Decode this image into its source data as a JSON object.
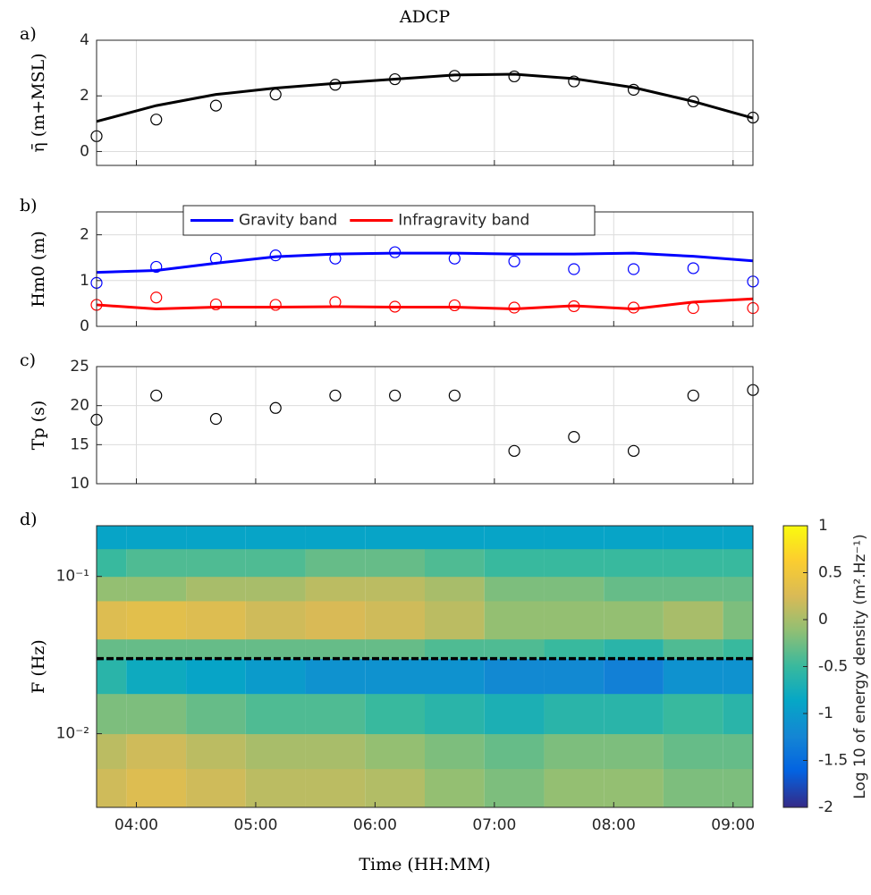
{
  "chart_data": [
    {
      "type": "line",
      "title": "ADCP",
      "panel_label": "a)",
      "ylabel": "η̄ (m+MSL)",
      "x": [
        220,
        250,
        280,
        310,
        340,
        370,
        400,
        430,
        460,
        490,
        520,
        550
      ],
      "xlim": [
        220,
        550
      ],
      "xticks": [
        240,
        300,
        360,
        420,
        480,
        540
      ],
      "ylim": [
        -0.5,
        4
      ],
      "yticks": [
        0,
        2,
        4
      ],
      "grid": true,
      "series": [
        {
          "color": "#000000",
          "values": [
            1.08,
            1.65,
            2.05,
            2.28,
            2.45,
            2.6,
            2.75,
            2.78,
            2.62,
            2.3,
            1.8,
            1.2
          ],
          "markers": [
            0.55,
            1.15,
            1.65,
            2.05,
            2.4,
            2.6,
            2.72,
            2.7,
            2.52,
            2.22,
            1.8,
            1.22
          ]
        }
      ]
    },
    {
      "type": "line",
      "panel_label": "b)",
      "ylabel": "Hm0 (m)",
      "x": [
        220,
        250,
        280,
        310,
        340,
        370,
        400,
        430,
        460,
        490,
        520,
        550
      ],
      "xlim": [
        220,
        550
      ],
      "xticks": [
        240,
        300,
        360,
        420,
        480,
        540
      ],
      "ylim": [
        0,
        2.5
      ],
      "yticks": [
        0,
        1,
        2
      ],
      "grid": true,
      "legend": "north",
      "series": [
        {
          "name": "Gravity band",
          "color": "#0000ff",
          "values": [
            1.18,
            1.22,
            1.38,
            1.52,
            1.58,
            1.6,
            1.6,
            1.58,
            1.58,
            1.6,
            1.53,
            1.43
          ],
          "markers": [
            0.95,
            1.3,
            1.48,
            1.55,
            1.48,
            1.62,
            1.48,
            1.42,
            1.25,
            1.25,
            1.27,
            0.98
          ]
        },
        {
          "name": "Infragravity band",
          "color": "#ff0000",
          "values": [
            0.47,
            0.38,
            0.42,
            0.42,
            0.43,
            0.42,
            0.42,
            0.38,
            0.45,
            0.38,
            0.53,
            0.6
          ],
          "markers": [
            0.47,
            0.63,
            0.48,
            0.47,
            0.53,
            0.43,
            0.46,
            0.41,
            0.44,
            0.41,
            0.4,
            0.4
          ]
        }
      ]
    },
    {
      "type": "scatter",
      "panel_label": "c)",
      "ylabel": "Tp (s)",
      "x": [
        220,
        250,
        280,
        310,
        340,
        370,
        400,
        430,
        460,
        490,
        520,
        550
      ],
      "xlim": [
        220,
        550
      ],
      "xticks": [
        240,
        300,
        360,
        420,
        480,
        540
      ],
      "ylim": [
        10,
        25
      ],
      "yticks": [
        10,
        15,
        20,
        25
      ],
      "grid": true,
      "series": [
        {
          "color": "#000000",
          "markers": [
            18.2,
            21.3,
            18.3,
            19.7,
            21.3,
            21.3,
            21.3,
            14.2,
            16,
            14.2,
            21.3,
            22
          ]
        }
      ]
    },
    {
      "type": "heatmap",
      "panel_label": "d)",
      "ylabel": "F (Hz)",
      "xlabel": "Time (HH:MM)",
      "x": [
        220,
        250,
        280,
        310,
        340,
        370,
        400,
        430,
        460,
        490,
        520,
        550
      ],
      "xlim": [
        220,
        550
      ],
      "xticks": [
        {
          "value": 240,
          "label": "04:00"
        },
        {
          "value": 300,
          "label": "05:00"
        },
        {
          "value": 360,
          "label": "06:00"
        },
        {
          "value": 420,
          "label": "07:00"
        },
        {
          "value": 480,
          "label": "08:00"
        },
        {
          "value": 540,
          "label": "09:00"
        }
      ],
      "ylim": [
        0.0034,
        0.21
      ],
      "ylog": true,
      "yticks": [
        {
          "value": 0.01,
          "label": "10⁻²"
        },
        {
          "value": 0.1,
          "label": "10⁻¹"
        }
      ],
      "y_edges": [
        0.0034,
        0.006,
        0.01,
        0.018,
        0.03,
        0.04,
        0.07,
        0.1,
        0.15,
        0.21
      ],
      "z": [
        [
          0.2,
          0.3,
          0.2,
          0.1,
          0.1,
          0.05,
          -0.1,
          -0.2,
          -0.1,
          -0.1,
          -0.2,
          -0.2
        ],
        [
          0.1,
          0.2,
          0.1,
          0,
          0,
          -0.1,
          -0.2,
          -0.3,
          -0.2,
          -0.2,
          -0.3,
          -0.3
        ],
        [
          -0.2,
          -0.2,
          -0.3,
          -0.4,
          -0.4,
          -0.5,
          -0.6,
          -0.7,
          -0.6,
          -0.6,
          -0.5,
          -0.6
        ],
        [
          -0.6,
          -0.8,
          -0.9,
          -1.0,
          -1.1,
          -1.1,
          -1.1,
          -1.2,
          -1.2,
          -1.3,
          -1.1,
          -1.1
        ],
        [
          -0.3,
          -0.3,
          -0.3,
          -0.3,
          -0.3,
          -0.3,
          -0.4,
          -0.4,
          -0.5,
          -0.6,
          -0.4,
          -0.5
        ],
        [
          0.3,
          0.35,
          0.3,
          0.2,
          0.25,
          0.2,
          0.1,
          -0.1,
          -0.1,
          -0.1,
          0,
          -0.2
        ],
        [
          -0.1,
          -0.1,
          0,
          0,
          0.1,
          0.1,
          0,
          -0.2,
          -0.2,
          -0.3,
          -0.3,
          -0.3
        ],
        [
          -0.5,
          -0.4,
          -0.4,
          -0.4,
          -0.3,
          -0.3,
          -0.4,
          -0.5,
          -0.5,
          -0.5,
          -0.5,
          -0.5
        ],
        [
          -0.9,
          -0.9,
          -0.9,
          -0.9,
          -0.9,
          -0.9,
          -0.9,
          -0.9,
          -0.9,
          -0.9,
          -0.9,
          -0.9
        ]
      ],
      "hlines": [
        0.03
      ],
      "colormap": "parula",
      "clim": [
        -2,
        1
      ],
      "cticks": [
        -2,
        -1.5,
        -1,
        -0.5,
        0,
        0.5,
        1
      ],
      "colorbar_label": "Log 10 of energy density (m².Hz⁻¹)"
    }
  ]
}
